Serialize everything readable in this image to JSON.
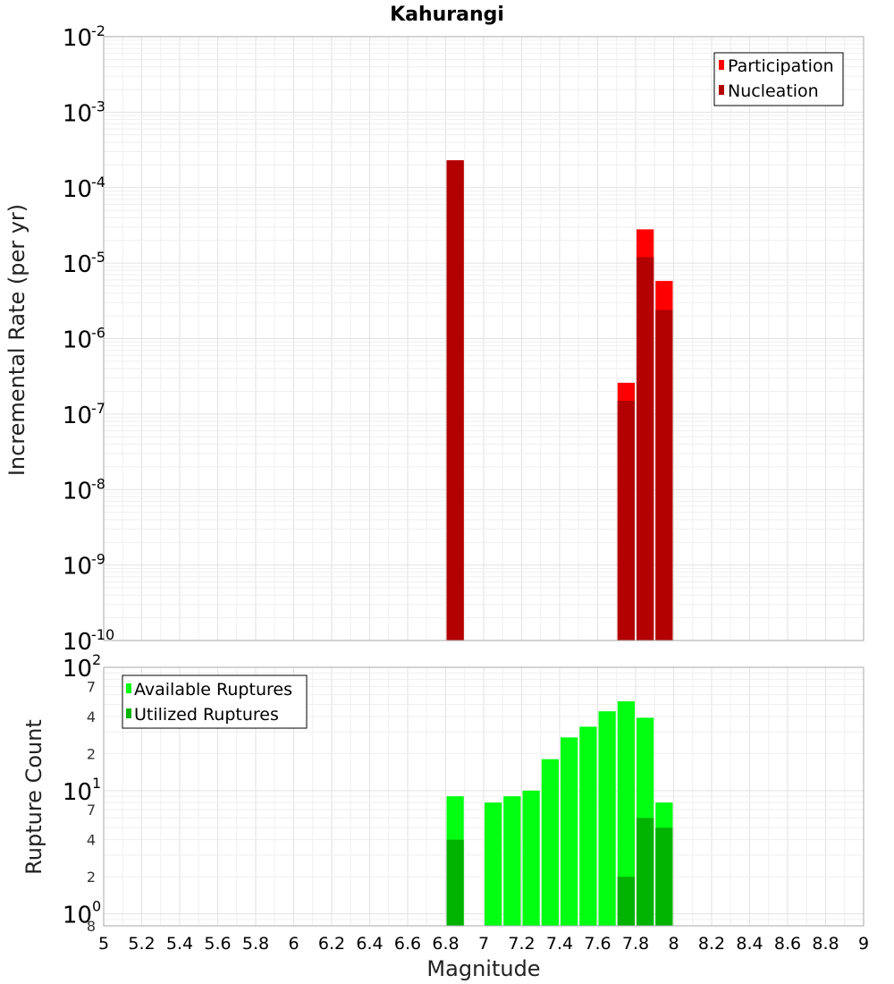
{
  "chart_data": [
    {
      "type": "bar",
      "title": "Kahurangi",
      "xlabel": "",
      "ylabel": "Incremental Rate (per yr)",
      "yscale": "log",
      "xlim": [
        5,
        9
      ],
      "ylim": [
        1e-10,
        0.01
      ],
      "legend_position": "top-right",
      "bar_width": 0.1,
      "series": [
        {
          "name": "Participation",
          "color": "#ff0000",
          "x": [
            6.85,
            7.75,
            7.85,
            7.95
          ],
          "values": [
            0.00023,
            2.6e-07,
            2.8e-05,
            5.8e-06
          ]
        },
        {
          "name": "Nucleation",
          "color": "#b30000",
          "x": [
            6.85,
            7.75,
            7.85,
            7.95
          ],
          "values": [
            0.00023,
            1.5e-07,
            1.2e-05,
            2.4e-06
          ]
        }
      ]
    },
    {
      "type": "bar",
      "title": "",
      "xlabel": "Magnitude",
      "ylabel": "Rupture Count",
      "yscale": "log",
      "xlim": [
        5,
        9
      ],
      "ylim": [
        0.8,
        100
      ],
      "legend_position": "top-left",
      "bar_width": 0.1,
      "series": [
        {
          "name": "Available Ruptures",
          "color": "#00ff11",
          "x": [
            6.85,
            7.05,
            7.15,
            7.25,
            7.35,
            7.45,
            7.55,
            7.65,
            7.75,
            7.85,
            7.95
          ],
          "values": [
            9,
            8,
            9,
            10,
            18,
            27,
            33,
            44,
            53,
            39,
            8
          ]
        },
        {
          "name": "Utilized Ruptures",
          "color": "#00b300",
          "x": [
            6.85,
            7.75,
            7.85,
            7.95
          ],
          "values": [
            4,
            2,
            6,
            5
          ]
        }
      ]
    }
  ],
  "axes": {
    "x_ticks": [
      "5",
      "5.2",
      "5.4",
      "5.6",
      "5.8",
      "6",
      "6.2",
      "6.4",
      "6.6",
      "6.8",
      "7",
      "7.2",
      "7.4",
      "7.6",
      "7.8",
      "8",
      "8.2",
      "8.4",
      "8.6",
      "8.8",
      "9"
    ],
    "top_y_ticks": [
      {
        "base": "10",
        "exp": "-2",
        "value": 0.01
      },
      {
        "base": "10",
        "exp": "-3",
        "value": 0.001
      },
      {
        "base": "10",
        "exp": "-4",
        "value": 0.0001
      },
      {
        "base": "10",
        "exp": "-5",
        "value": 1e-05
      },
      {
        "base": "10",
        "exp": "-6",
        "value": 1e-06
      },
      {
        "base": "10",
        "exp": "-7",
        "value": 1e-07
      },
      {
        "base": "10",
        "exp": "-8",
        "value": 1e-08
      },
      {
        "base": "10",
        "exp": "-9",
        "value": 1e-09
      },
      {
        "base": "10",
        "exp": "-10",
        "value": 1e-10
      }
    ],
    "bottom_y_major": [
      {
        "base": "10",
        "exp": "2",
        "value": 100
      },
      {
        "base": "10",
        "exp": "1",
        "value": 10
      },
      {
        "base": "10",
        "exp": "0",
        "value": 1
      }
    ],
    "bottom_y_minor": [
      {
        "label": "7",
        "value": 70
      },
      {
        "label": "4",
        "value": 40
      },
      {
        "label": "2",
        "value": 20
      },
      {
        "label": "7",
        "value": 7
      },
      {
        "label": "4",
        "value": 4
      },
      {
        "label": "2",
        "value": 2
      },
      {
        "label": "8",
        "value": 0.8
      }
    ]
  }
}
